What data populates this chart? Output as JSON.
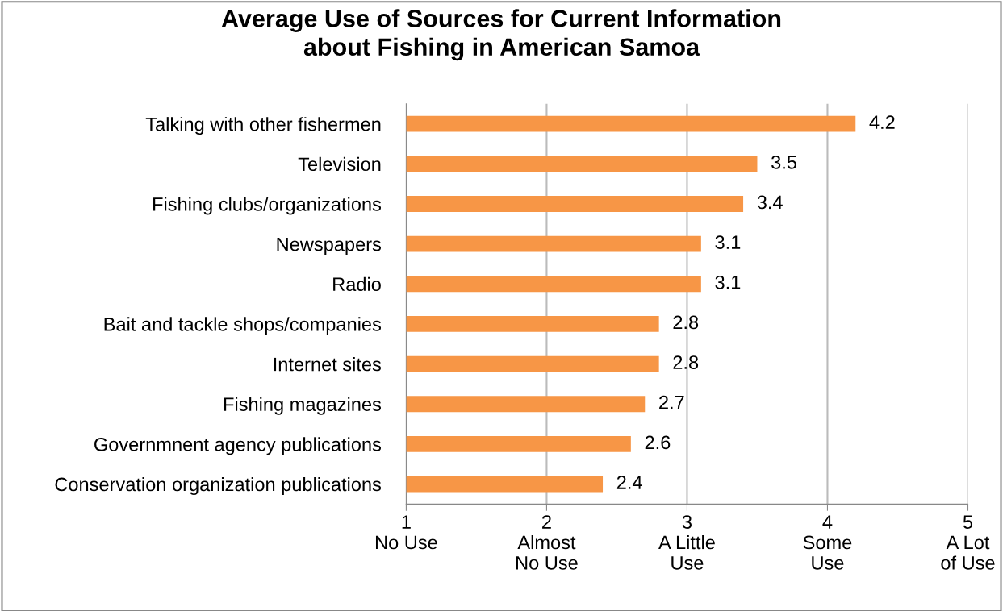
{
  "chart_data": {
    "type": "bar",
    "orientation": "horizontal",
    "title": "Average Use of Sources for Current Information\nabout Fishing in American Samoa",
    "categories": [
      "Talking with other fishermen",
      "Television",
      "Fishing clubs/organizations",
      "Newspapers",
      "Radio",
      "Bait and tackle shops/companies",
      "Internet sites",
      "Fishing magazines",
      "Governmnent agency publications",
      "Conservation organization publications"
    ],
    "values": [
      4.2,
      3.5,
      3.4,
      3.1,
      3.1,
      2.8,
      2.8,
      2.7,
      2.6,
      2.4
    ],
    "color": "#f79646",
    "data_labels": true,
    "grid": "x",
    "xlim": [
      1,
      5
    ],
    "xticks": [
      {
        "value": 1,
        "label": "1\nNo Use"
      },
      {
        "value": 2,
        "label": "2\nAlmost\nNo Use"
      },
      {
        "value": 3,
        "label": "3\nA Little\nUse"
      },
      {
        "value": 4,
        "label": "4\nSome\nUse"
      },
      {
        "value": 5,
        "label": "5\nA Lot\nof Use"
      }
    ]
  }
}
